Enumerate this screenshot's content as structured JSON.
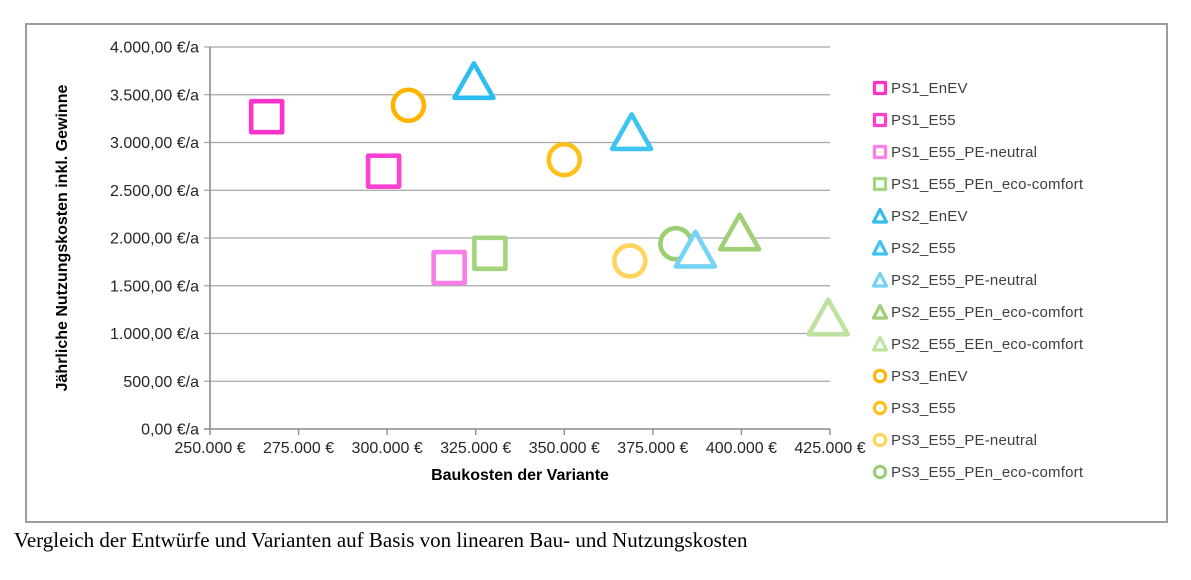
{
  "caption": "Vergleich der Entwürfe und Varianten auf Basis von linearen Bau- und Nutzungskosten",
  "chart_data": {
    "type": "scatter",
    "title": "",
    "xlabel": "Baukosten der Variante",
    "ylabel": "Jährliche Nutzungskosten inkl. Gewinne",
    "xlim": [
      250000,
      425000
    ],
    "ylim": [
      0,
      4000
    ],
    "grid": "horizontal",
    "legend_position": "right",
    "x_ticks": [
      250000,
      275000,
      300000,
      325000,
      350000,
      375000,
      400000,
      425000
    ],
    "x_tick_labels": [
      "250.000 €",
      "275.000 €",
      "300.000 €",
      "325.000 €",
      "350.000 €",
      "375.000 €",
      "400.000 €",
      "425.000 €"
    ],
    "y_ticks": [
      0,
      500,
      1000,
      1500,
      2000,
      2500,
      3000,
      3500,
      4000
    ],
    "y_tick_labels": [
      "0,00 €/a",
      "500,00 €/a",
      "1.000,00 €/a",
      "1.500,00 €/a",
      "2.000,00 €/a",
      "2.500,00 €/a",
      "3.000,00 €/a",
      "3.500,00 €/a",
      "4.000,00 €/a"
    ],
    "axis_color": "#8c8c8c",
    "grid_color": "#a6a6a6",
    "tick_label_color": "#262626",
    "series": [
      {
        "name": "PS1_EnEV",
        "marker": "square",
        "color": "#ff33cc",
        "points": [
          [
            266000,
            3270
          ]
        ]
      },
      {
        "name": "PS1_E55",
        "marker": "square",
        "color": "#ff40d0",
        "points": [
          [
            299000,
            2700
          ]
        ]
      },
      {
        "name": "PS1_E55_PE-neutral",
        "marker": "square",
        "color": "#f97deb",
        "points": [
          [
            317500,
            1690
          ]
        ]
      },
      {
        "name": "PS1_E55_PEn_eco-comfort",
        "marker": "square",
        "color": "#a5d47e",
        "points": [
          [
            329000,
            1840
          ]
        ]
      },
      {
        "name": "PS2_EnEV",
        "marker": "triangle",
        "color": "#2ebdf0",
        "points": [
          [
            324500,
            3630
          ]
        ]
      },
      {
        "name": "PS2_E55",
        "marker": "triangle",
        "color": "#3fc4f2",
        "points": [
          [
            369000,
            3095
          ]
        ]
      },
      {
        "name": "PS2_E55_PE-neutral",
        "marker": "triangle",
        "color": "#77d3f6",
        "points": [
          [
            387000,
            1865
          ]
        ]
      },
      {
        "name": "PS2_E55_PEn_eco-comfort",
        "marker": "triangle",
        "color": "#a0d075",
        "points": [
          [
            399500,
            2045
          ]
        ]
      },
      {
        "name": "PS2_E55_EEn_eco-comfort",
        "marker": "triangle",
        "color": "#bfe2a1",
        "points": [
          [
            424500,
            1155
          ]
        ]
      },
      {
        "name": "PS3_EnEV",
        "marker": "circle",
        "color": "#ffb400",
        "points": [
          [
            306000,
            3390
          ]
        ]
      },
      {
        "name": "PS3_E55",
        "marker": "circle",
        "color": "#ffc01e",
        "points": [
          [
            350000,
            2820
          ]
        ]
      },
      {
        "name": "PS3_E55_PE-neutral",
        "marker": "circle",
        "color": "#ffd35c",
        "points": [
          [
            368500,
            1760
          ]
        ]
      },
      {
        "name": "PS3_E55_PEn_eco-comfort",
        "marker": "circle",
        "color": "#9bcd72",
        "points": [
          [
            381500,
            1940
          ]
        ]
      }
    ]
  }
}
